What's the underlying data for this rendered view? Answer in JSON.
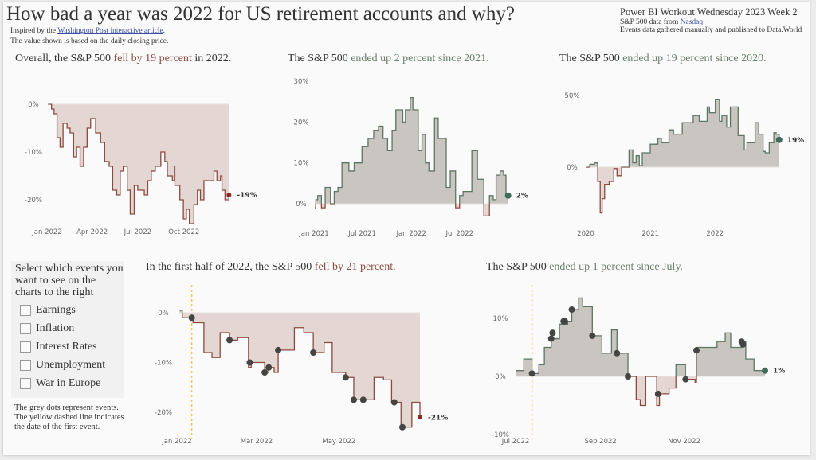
{
  "header": {
    "title": "How bad a year was 2022 for US retirement accounts and why?",
    "inspired_pre": "Inspired by the ",
    "inspired_link": "Washington Post interactive article",
    "inspired_post": ".",
    "note": "The value shown is based on the daily closing price.",
    "right_title": "Power BI Workout Wednesday 2023 Week 2",
    "source_pre": "S&P 500 data from ",
    "source_link": "Nasdaq",
    "events_source": "Events data gathered manually and published to Data.World"
  },
  "selector": {
    "title": "Select which events you want to see on the charts to the right",
    "options": [
      {
        "label": "Earnings",
        "checked": false
      },
      {
        "label": "Inflation",
        "checked": false
      },
      {
        "label": "Interest Rates",
        "checked": false
      },
      {
        "label": "Unemployment",
        "checked": false
      },
      {
        "label": "War in Europe",
        "checked": false
      }
    ],
    "footnote": "The grey dots represent events. The yellow dashed line indicates the date of the first event."
  },
  "colors": {
    "positive_line": "#5f7563",
    "positive_fill": "#c9c5c0",
    "negative_line": "#8b4a40",
    "negative_fill": "#e4d6d2",
    "event_dot": "#444444",
    "first_event_line": "#e8c95a",
    "end_positive": "#3f6b5a",
    "end_negative": "#8b2a22"
  },
  "chart_data": [
    {
      "type": "line",
      "title": {
        "pre": "Overall, the S&P 500 ",
        "em": "fell by 19 percent",
        "post": " in 2022.",
        "tone": "neg"
      },
      "x_ticks": [
        [
          "2022-01-01",
          "Jan 2022"
        ],
        [
          "2022-04-01",
          "Apr 2022"
        ],
        [
          "2022-07-01",
          "Jul 2022"
        ],
        [
          "2022-10-01",
          "Oct 2022"
        ]
      ],
      "y_ticks": [
        [
          0,
          "0%"
        ],
        [
          -10,
          "-10%"
        ],
        [
          -20,
          "-20%"
        ]
      ],
      "xlim": [
        "2022-01-01",
        "2022-12-31"
      ],
      "end_label": "-19%",
      "points": [
        [
          "2022-01-03",
          0
        ],
        [
          "2022-01-10",
          -1
        ],
        [
          "2022-01-15",
          -2
        ],
        [
          "2022-01-21",
          -7
        ],
        [
          "2022-01-27",
          -9
        ],
        [
          "2022-02-02",
          -4
        ],
        [
          "2022-02-10",
          -5
        ],
        [
          "2022-02-16",
          -6
        ],
        [
          "2022-02-23",
          -11
        ],
        [
          "2022-03-01",
          -9
        ],
        [
          "2022-03-08",
          -13
        ],
        [
          "2022-03-15",
          -9
        ],
        [
          "2022-03-22",
          -5
        ],
        [
          "2022-03-29",
          -3
        ],
        [
          "2022-04-08",
          -6
        ],
        [
          "2022-04-18",
          -8
        ],
        [
          "2022-04-26",
          -12
        ],
        [
          "2022-05-05",
          -13
        ],
        [
          "2022-05-12",
          -18
        ],
        [
          "2022-05-20",
          -19
        ],
        [
          "2022-05-27",
          -14
        ],
        [
          "2022-06-02",
          -13
        ],
        [
          "2022-06-10",
          -18
        ],
        [
          "2022-06-16",
          -23
        ],
        [
          "2022-06-24",
          -17
        ],
        [
          "2022-07-01",
          -18
        ],
        [
          "2022-07-14",
          -19
        ],
        [
          "2022-07-21",
          -16
        ],
        [
          "2022-07-28",
          -14
        ],
        [
          "2022-08-05",
          -13
        ],
        [
          "2022-08-16",
          -10
        ],
        [
          "2022-08-24",
          -12
        ],
        [
          "2022-08-29",
          -15
        ],
        [
          "2022-09-08",
          -16
        ],
        [
          "2022-09-12",
          -13
        ],
        [
          "2022-09-13",
          -17
        ],
        [
          "2022-09-23",
          -20
        ],
        [
          "2022-09-30",
          -24
        ],
        [
          "2022-10-06",
          -22
        ],
        [
          "2022-10-12",
          -25
        ],
        [
          "2022-10-21",
          -21
        ],
        [
          "2022-10-28",
          -18
        ],
        [
          "2022-11-03",
          -20
        ],
        [
          "2022-11-10",
          -16
        ],
        [
          "2022-11-18",
          -16
        ],
        [
          "2022-11-30",
          -14
        ],
        [
          "2022-12-06",
          -16
        ],
        [
          "2022-12-13",
          -15
        ],
        [
          "2022-12-16",
          -18
        ],
        [
          "2022-12-22",
          -20
        ],
        [
          "2022-12-30",
          -19
        ]
      ],
      "events": []
    },
    {
      "type": "line",
      "title": {
        "pre": "The S&P 500 ",
        "em": "ended up 2 percent since 2021.",
        "post": "",
        "tone": "pos"
      },
      "x_ticks": [
        [
          "2021-01-01",
          "Jan 2021"
        ],
        [
          "2021-07-01",
          "Jul 2021"
        ],
        [
          "2022-01-01",
          "Jan 2022"
        ],
        [
          "2022-07-01",
          "Jul 2022"
        ]
      ],
      "y_ticks": [
        [
          0,
          "0%"
        ],
        [
          10,
          "10%"
        ],
        [
          20,
          "20%"
        ],
        [
          30,
          "30%"
        ]
      ],
      "xlim": [
        "2021-01-01",
        "2022-12-31"
      ],
      "end_label": "2%",
      "points": [
        [
          "2021-01-04",
          -1
        ],
        [
          "2021-01-08",
          1
        ],
        [
          "2021-01-15",
          2
        ],
        [
          "2021-01-29",
          -1
        ],
        [
          "2021-02-12",
          4
        ],
        [
          "2021-03-04",
          0
        ],
        [
          "2021-03-18",
          3
        ],
        [
          "2021-04-01",
          4
        ],
        [
          "2021-04-16",
          10
        ],
        [
          "2021-05-12",
          8
        ],
        [
          "2021-06-01",
          10
        ],
        [
          "2021-06-30",
          14
        ],
        [
          "2021-07-23",
          16
        ],
        [
          "2021-08-13",
          18
        ],
        [
          "2021-08-31",
          19
        ],
        [
          "2021-09-17",
          16
        ],
        [
          "2021-10-04",
          13
        ],
        [
          "2021-10-21",
          18
        ],
        [
          "2021-11-04",
          23
        ],
        [
          "2021-11-20",
          23
        ],
        [
          "2021-11-30",
          20
        ],
        [
          "2021-12-10",
          23
        ],
        [
          "2021-12-28",
          26
        ],
        [
          "2022-01-07",
          23
        ],
        [
          "2022-01-27",
          13
        ],
        [
          "2022-02-10",
          17
        ],
        [
          "2022-02-23",
          10
        ],
        [
          "2022-03-08",
          8
        ],
        [
          "2022-03-29",
          21
        ],
        [
          "2022-04-12",
          16
        ],
        [
          "2022-05-12",
          4
        ],
        [
          "2022-05-27",
          8
        ],
        [
          "2022-06-16",
          -1
        ],
        [
          "2022-07-01",
          2
        ],
        [
          "2022-07-14",
          3
        ],
        [
          "2022-08-16",
          13
        ],
        [
          "2022-09-06",
          6
        ],
        [
          "2022-09-30",
          -3
        ],
        [
          "2022-10-12",
          -3
        ],
        [
          "2022-10-21",
          2
        ],
        [
          "2022-11-04",
          1
        ],
        [
          "2022-11-15",
          7
        ],
        [
          "2022-11-30",
          8
        ],
        [
          "2022-12-13",
          7
        ],
        [
          "2022-12-22",
          2
        ],
        [
          "2022-12-30",
          2
        ]
      ],
      "events": []
    },
    {
      "type": "line",
      "title": {
        "pre": "The S&P 500 ",
        "em": "ended up 19 percent since 2020.",
        "post": "",
        "tone": "pos"
      },
      "x_ticks": [
        [
          "2020-01-01",
          "2020"
        ],
        [
          "2021-01-01",
          "2021"
        ],
        [
          "2022-01-01",
          "2022"
        ]
      ],
      "y_ticks": [
        [
          0,
          "0%"
        ],
        [
          50,
          "50%"
        ]
      ],
      "xlim": [
        "2020-01-01",
        "2022-12-31"
      ],
      "end_label": "19%",
      "points": [
        [
          "2020-01-02",
          0
        ],
        [
          "2020-01-24",
          2
        ],
        [
          "2020-02-19",
          3
        ],
        [
          "2020-03-09",
          -10
        ],
        [
          "2020-03-23",
          -32
        ],
        [
          "2020-04-03",
          -22
        ],
        [
          "2020-04-17",
          -12
        ],
        [
          "2020-05-13",
          -10
        ],
        [
          "2020-06-08",
          -1
        ],
        [
          "2020-06-26",
          -6
        ],
        [
          "2020-07-22",
          0
        ],
        [
          "2020-09-02",
          12
        ],
        [
          "2020-09-23",
          3
        ],
        [
          "2020-10-12",
          8
        ],
        [
          "2020-10-30",
          1
        ],
        [
          "2020-11-16",
          10
        ],
        [
          "2020-12-31",
          16
        ],
        [
          "2021-02-12",
          20
        ],
        [
          "2021-03-04",
          17
        ],
        [
          "2021-04-16",
          26
        ],
        [
          "2021-05-12",
          23
        ],
        [
          "2021-06-30",
          31
        ],
        [
          "2021-08-31",
          36
        ],
        [
          "2021-10-04",
          32
        ],
        [
          "2021-11-18",
          42
        ],
        [
          "2021-12-01",
          38
        ],
        [
          "2022-01-03",
          47
        ],
        [
          "2022-01-27",
          32
        ],
        [
          "2022-02-09",
          36
        ],
        [
          "2022-03-08",
          28
        ],
        [
          "2022-03-29",
          42
        ],
        [
          "2022-05-12",
          22
        ],
        [
          "2022-06-16",
          12
        ],
        [
          "2022-07-01",
          17
        ],
        [
          "2022-08-16",
          31
        ],
        [
          "2022-09-06",
          23
        ],
        [
          "2022-09-30",
          11
        ],
        [
          "2022-10-12",
          10
        ],
        [
          "2022-11-04",
          17
        ],
        [
          "2022-11-30",
          24
        ],
        [
          "2022-12-13",
          23
        ],
        [
          "2022-12-30",
          19
        ]
      ],
      "events": []
    },
    {
      "type": "line",
      "title": {
        "pre": "In the first half of 2022, the S&P 500 ",
        "em": "fell by 21 percent.",
        "post": "",
        "tone": "neg"
      },
      "x_ticks": [
        [
          "2022-01-01",
          "Jan 2022"
        ],
        [
          "2022-03-01",
          "Mar 2022"
        ],
        [
          "2022-05-01",
          "May 2022"
        ]
      ],
      "y_ticks": [
        [
          0,
          "0%"
        ],
        [
          -10,
          "-10%"
        ],
        [
          -20,
          "-20%"
        ]
      ],
      "xlim": [
        "2022-01-01",
        "2022-06-30"
      ],
      "end_label": "-21%",
      "first_event_date": "2022-01-12",
      "points": [
        [
          "2022-01-03",
          0.5
        ],
        [
          "2022-01-05",
          -1
        ],
        [
          "2022-01-13",
          -2
        ],
        [
          "2022-01-21",
          -8
        ],
        [
          "2022-01-27",
          -9
        ],
        [
          "2022-02-02",
          -4
        ],
        [
          "2022-02-09",
          -5.5
        ],
        [
          "2022-02-15",
          -5
        ],
        [
          "2022-02-23",
          -11
        ],
        [
          "2022-02-25",
          -10
        ],
        [
          "2022-03-07",
          -12
        ],
        [
          "2022-03-10",
          -11
        ],
        [
          "2022-03-14",
          -12
        ],
        [
          "2022-03-17",
          -7.5
        ],
        [
          "2022-03-29",
          -3
        ],
        [
          "2022-04-05",
          -4
        ],
        [
          "2022-04-12",
          -8
        ],
        [
          "2022-04-20",
          -6
        ],
        [
          "2022-04-26",
          -12
        ],
        [
          "2022-05-06",
          -13
        ],
        [
          "2022-05-12",
          -17.5
        ],
        [
          "2022-05-19",
          -17.5
        ],
        [
          "2022-05-27",
          -13
        ],
        [
          "2022-06-03",
          -13.5
        ],
        [
          "2022-06-09",
          -18
        ],
        [
          "2022-06-16",
          -23
        ],
        [
          "2022-06-24",
          -18
        ],
        [
          "2022-06-30",
          -21
        ]
      ],
      "events": [
        [
          "2022-01-12",
          -1
        ],
        [
          "2022-02-09",
          -5.5
        ],
        [
          "2022-02-24",
          -10
        ],
        [
          "2022-03-07",
          -12
        ],
        [
          "2022-03-10",
          -11
        ],
        [
          "2022-03-17",
          -7.5
        ],
        [
          "2022-04-12",
          -8
        ],
        [
          "2022-05-06",
          -13
        ],
        [
          "2022-05-12",
          -17.5
        ],
        [
          "2022-05-19",
          -17.5
        ],
        [
          "2022-06-11",
          -18
        ],
        [
          "2022-06-17",
          -23
        ]
      ]
    },
    {
      "type": "line",
      "title": {
        "pre": "The S&P 500 ",
        "em": "ended up 1 percent since July.",
        "post": "",
        "tone": "pos"
      },
      "x_ticks": [
        [
          "2022-07-01",
          "Jul 2022"
        ],
        [
          "2022-09-01",
          "Sep 2022"
        ],
        [
          "2022-11-01",
          "Nov 2022"
        ]
      ],
      "y_ticks": [
        [
          -10,
          "-10%"
        ],
        [
          0,
          "0%"
        ],
        [
          10,
          "10%"
        ]
      ],
      "xlim": [
        "2022-07-01",
        "2022-12-30"
      ],
      "end_label": "1%",
      "first_event_date": "2022-07-13",
      "points": [
        [
          "2022-07-01",
          1
        ],
        [
          "2022-07-07",
          3
        ],
        [
          "2022-07-13",
          0.5
        ],
        [
          "2022-07-18",
          2
        ],
        [
          "2022-07-22",
          5
        ],
        [
          "2022-07-27",
          6.5
        ],
        [
          "2022-08-02",
          9
        ],
        [
          "2022-08-08",
          9.5
        ],
        [
          "2022-08-11",
          11.5
        ],
        [
          "2022-08-16",
          13.5
        ],
        [
          "2022-08-19",
          12
        ],
        [
          "2022-08-26",
          7
        ],
        [
          "2022-09-02",
          4
        ],
        [
          "2022-09-09",
          8
        ],
        [
          "2022-09-13",
          4
        ],
        [
          "2022-09-21",
          0
        ],
        [
          "2022-09-27",
          -4
        ],
        [
          "2022-09-30",
          -5
        ],
        [
          "2022-10-04",
          0
        ],
        [
          "2022-10-12",
          -5
        ],
        [
          "2022-10-14",
          -3
        ],
        [
          "2022-10-21",
          -2
        ],
        [
          "2022-10-26",
          2
        ],
        [
          "2022-11-02",
          -0.5
        ],
        [
          "2022-11-09",
          -1
        ],
        [
          "2022-11-10",
          5
        ],
        [
          "2022-11-15",
          5
        ],
        [
          "2022-11-25",
          6
        ],
        [
          "2022-12-01",
          7.5
        ],
        [
          "2022-12-05",
          5
        ],
        [
          "2022-12-13",
          6
        ],
        [
          "2022-12-16",
          3
        ],
        [
          "2022-12-22",
          1
        ],
        [
          "2022-12-30",
          1
        ]
      ],
      "events": [
        [
          "2022-07-13",
          0.5
        ],
        [
          "2022-07-27",
          6.5
        ],
        [
          "2022-07-28",
          7.5
        ],
        [
          "2022-08-05",
          9.5
        ],
        [
          "2022-08-06",
          9.5
        ],
        [
          "2022-08-11",
          11.5
        ],
        [
          "2022-08-26",
          7
        ],
        [
          "2022-09-13",
          4
        ],
        [
          "2022-09-21",
          0
        ],
        [
          "2022-10-13",
          -3
        ],
        [
          "2022-11-02",
          -0.5
        ],
        [
          "2022-11-10",
          4.5
        ],
        [
          "2022-12-13",
          6
        ],
        [
          "2022-12-14",
          5.5
        ]
      ]
    }
  ]
}
